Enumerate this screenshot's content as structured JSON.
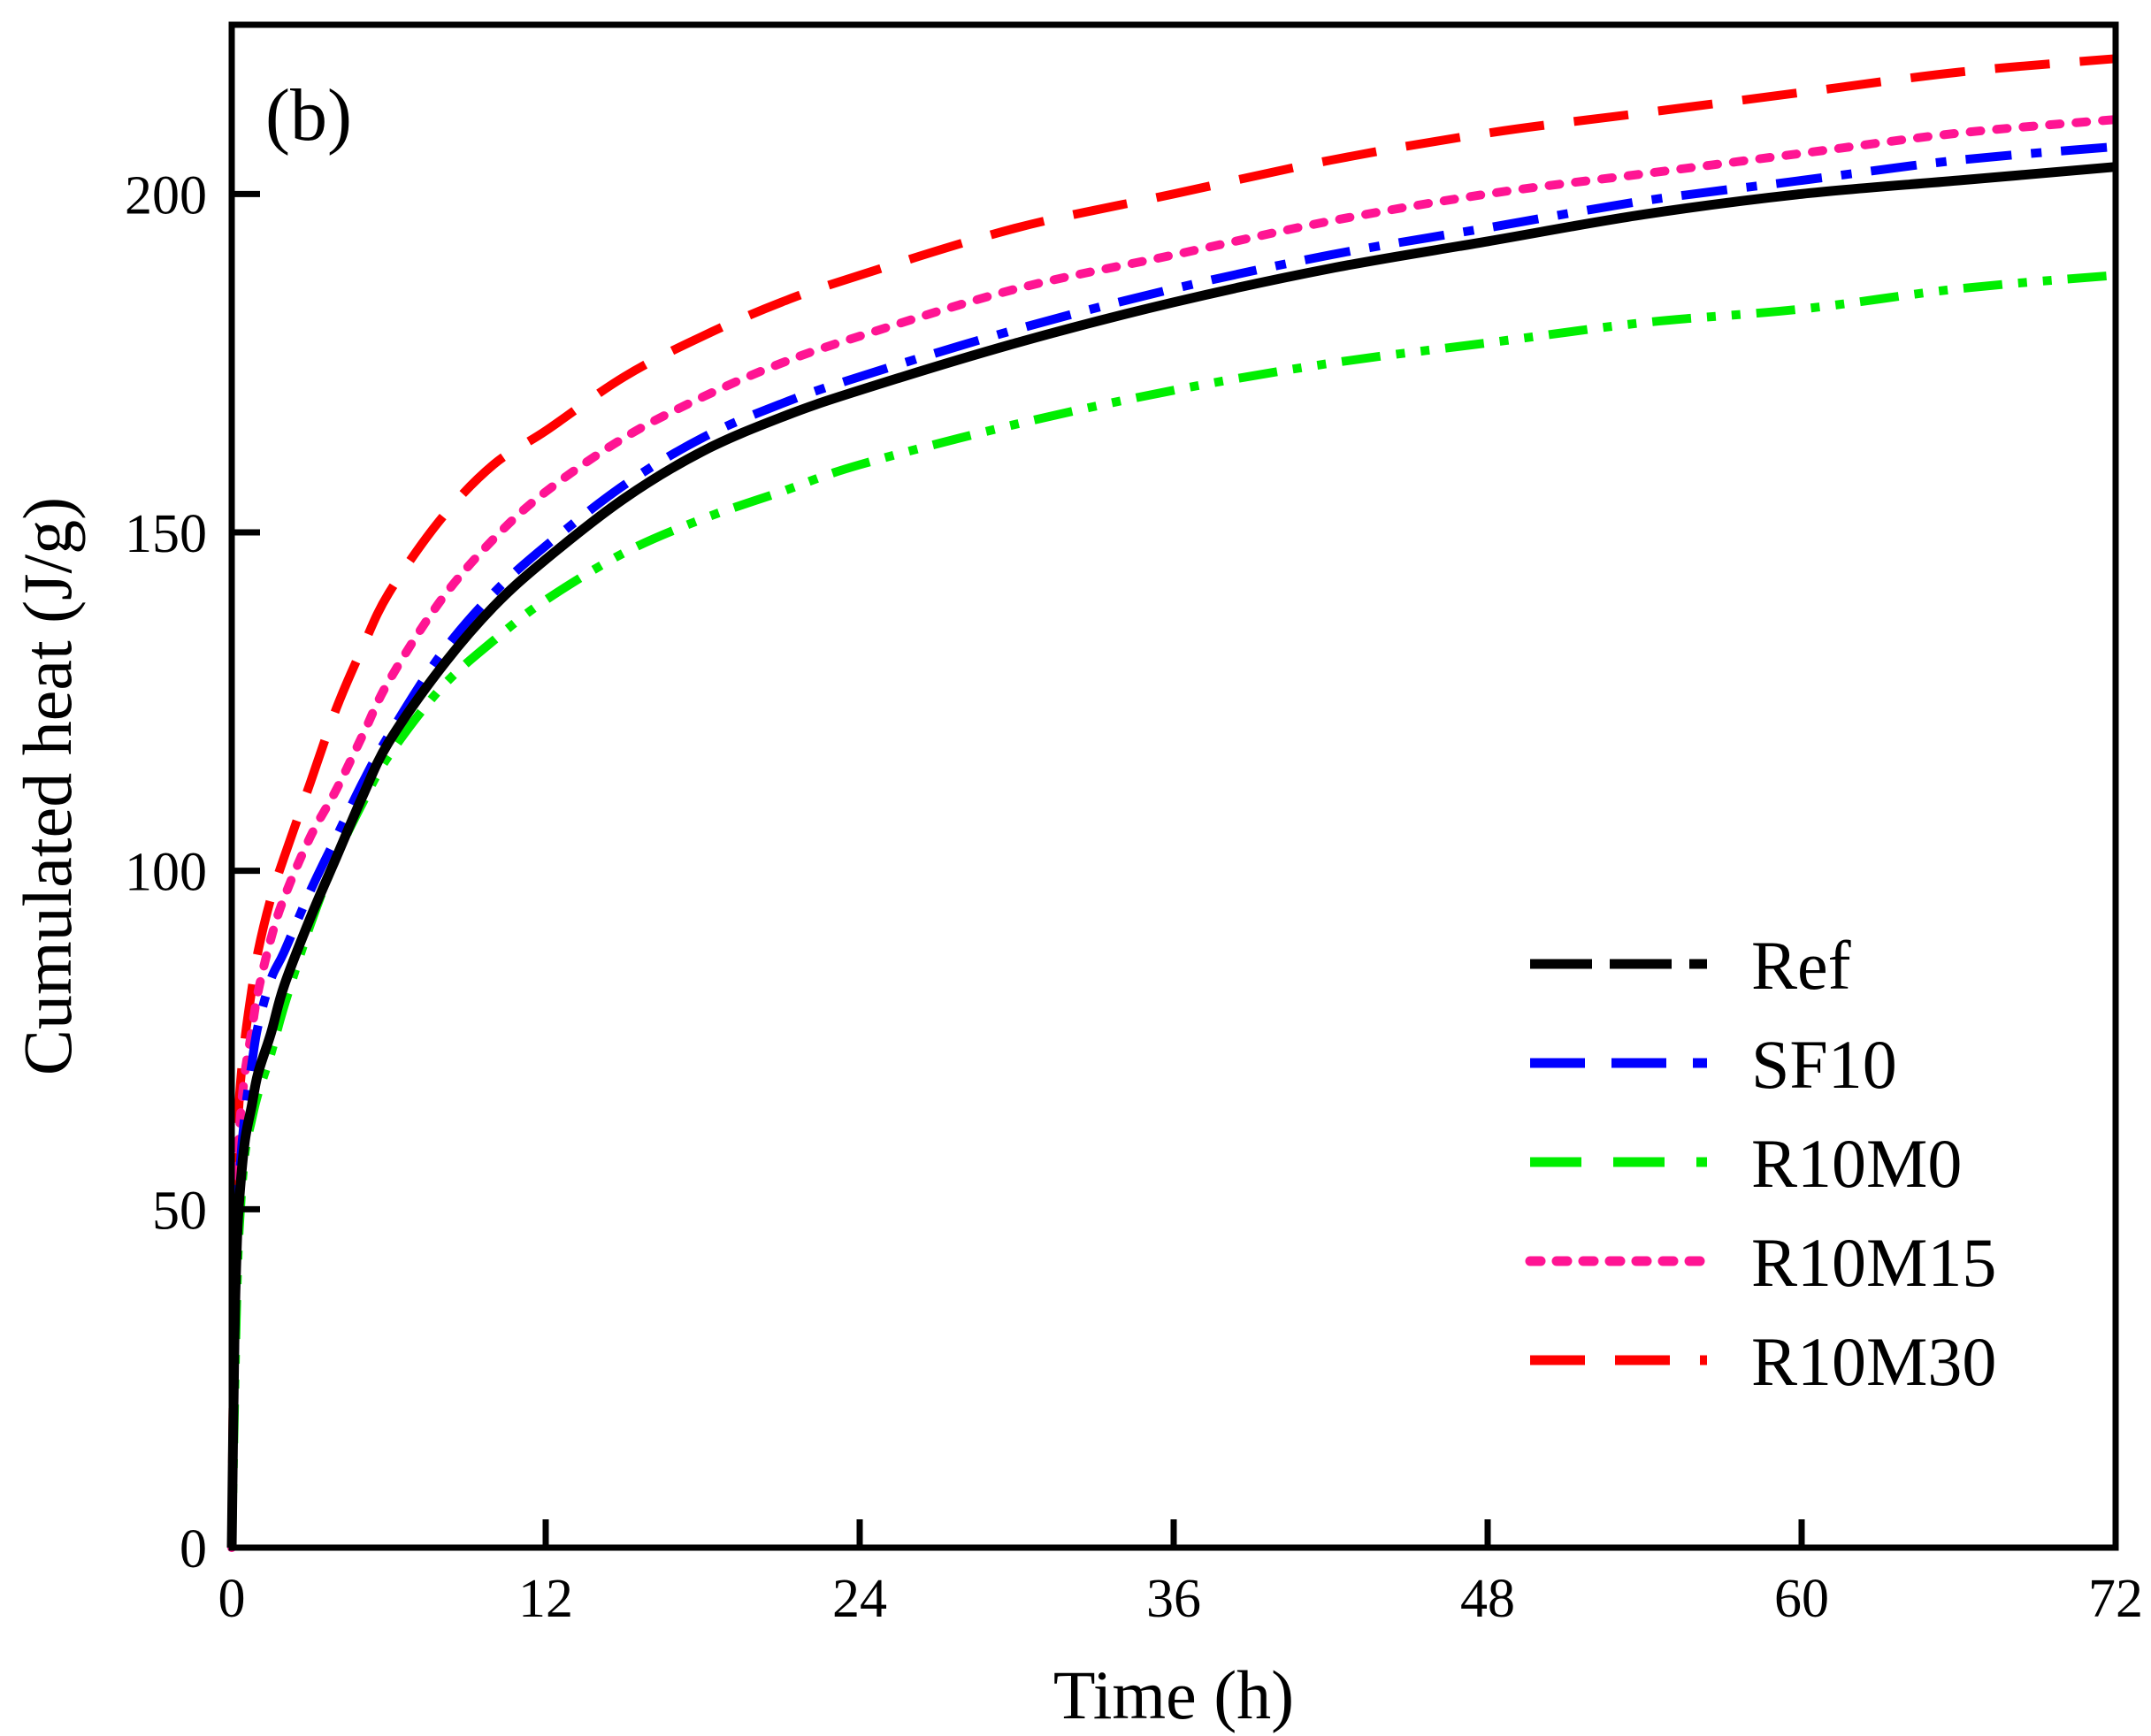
{
  "chart_data": {
    "type": "line",
    "panel_label": "(b)",
    "title": "",
    "xlabel": "Time (h)",
    "ylabel": "Cumulated heat (J/g)",
    "xlim": [
      0,
      72
    ],
    "ylim": [
      0,
      225
    ],
    "xticks": [
      0,
      12,
      24,
      36,
      48,
      60,
      72
    ],
    "yticks": [
      0,
      50,
      100,
      150,
      200
    ],
    "grid": false,
    "legend_position": "bottom-right",
    "series": [
      {
        "name": "Ref",
        "color": "#000000",
        "style": "solid",
        "x": [
          0,
          0.1,
          0.2,
          0.3,
          0.5,
          0.75,
          1,
          1.5,
          2,
          3,
          4,
          5,
          6,
          8,
          10,
          12,
          15,
          18,
          21,
          24,
          30,
          36,
          42,
          48,
          54,
          60,
          66,
          72
        ],
        "y": [
          0,
          30,
          45,
          52,
          60,
          65,
          70,
          76,
          83,
          93,
          102,
          111,
          119,
          130,
          139,
          146,
          155,
          162,
          167,
          171,
          178,
          184,
          189,
          193,
          197,
          200,
          202,
          204
        ]
      },
      {
        "name": "SF10",
        "color": "#0000ff",
        "style": "dashdot",
        "x": [
          0,
          0.1,
          0.2,
          0.3,
          0.5,
          0.75,
          1,
          1.5,
          2,
          3,
          4,
          5,
          6,
          8,
          10,
          12,
          15,
          18,
          21,
          24,
          30,
          36,
          42,
          48,
          54,
          60,
          66,
          72
        ],
        "y": [
          0,
          28,
          45,
          55,
          64,
          71,
          77,
          84,
          88,
          97,
          105,
          113,
          120,
          132,
          141,
          148,
          157,
          164,
          169,
          173,
          180,
          186,
          191,
          195,
          199,
          202,
          205,
          207
        ]
      },
      {
        "name": "R10M0",
        "color": "#00ee00",
        "style": "dashdotdot",
        "x": [
          0,
          0.1,
          0.2,
          0.3,
          0.5,
          0.75,
          1,
          1.5,
          2,
          3,
          4,
          5,
          6,
          8,
          10,
          12,
          15,
          18,
          21,
          24,
          30,
          36,
          42,
          48,
          54,
          60,
          66,
          72
        ],
        "y": [
          0,
          20,
          38,
          48,
          58,
          63,
          67,
          73,
          80,
          92,
          102,
          110,
          117,
          127,
          134,
          140,
          147,
          152,
          156,
          160,
          166,
          171,
          175,
          178,
          181,
          183,
          186,
          188
        ]
      },
      {
        "name": "R10M15",
        "color": "#ff1493",
        "style": "dotted",
        "x": [
          0,
          0.1,
          0.2,
          0.3,
          0.5,
          0.75,
          1,
          1.5,
          2,
          3,
          4,
          5,
          6,
          8,
          10,
          12,
          15,
          18,
          21,
          24,
          30,
          36,
          42,
          48,
          54,
          60,
          66,
          72
        ],
        "y": [
          0,
          35,
          52,
          62,
          70,
          76,
          82,
          90,
          96,
          105,
          112,
          120,
          128,
          140,
          149,
          156,
          164,
          170,
          175,
          179,
          186,
          191,
          196,
          200,
          203,
          206,
          209,
          211
        ]
      },
      {
        "name": "R10M30",
        "color": "#ff0000",
        "style": "dashed",
        "x": [
          0,
          0.1,
          0.2,
          0.3,
          0.5,
          0.75,
          1,
          1.5,
          2,
          3,
          4,
          5,
          6,
          8,
          10,
          12,
          15,
          18,
          21,
          24,
          30,
          36,
          42,
          48,
          54,
          60,
          66,
          72
        ],
        "y": [
          0,
          40,
          58,
          67,
          75,
          82,
          88,
          96,
          102,
          113,
          124,
          133,
          141,
          152,
          160,
          165,
          173,
          179,
          184,
          188,
          195,
          200,
          205,
          209,
          212,
          215,
          218,
          220
        ]
      }
    ]
  }
}
